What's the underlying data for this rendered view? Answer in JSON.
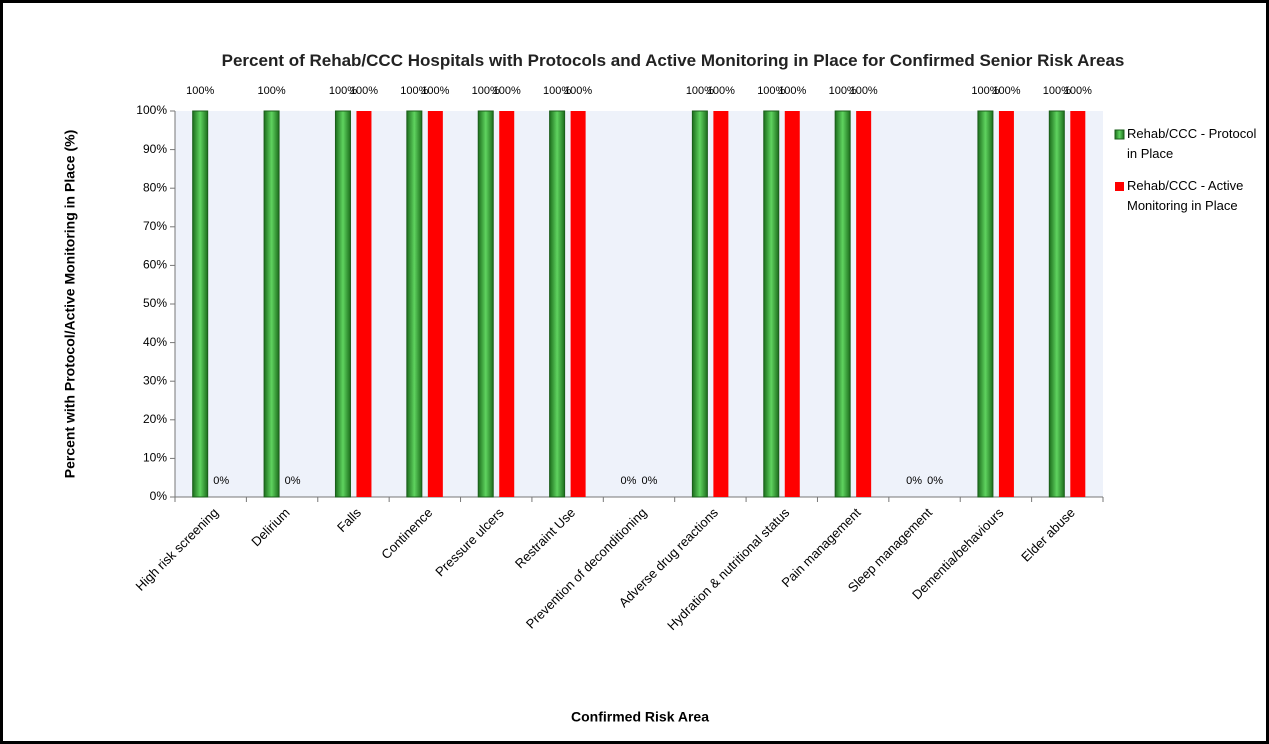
{
  "chart_data": {
    "type": "bar",
    "title": "Percent of Rehab/CCC Hospitals with Protocols and Active Monitoring in Place for Confirmed Senior Risk Areas",
    "x_label": "Confirmed Risk Area",
    "y_label": "Percent with Protocol/Active Monitoring in Place (%)",
    "categories": [
      "High risk screening",
      "Delirium",
      "Falls",
      "Continence",
      "Pressure ulcers",
      "Restraint Use",
      "Prevention of deconditioning",
      "Adverse drug reactions",
      "Hydration & nutritional status",
      "Pain management",
      "Sleep management",
      "Dementia/behaviours",
      "Elder abuse"
    ],
    "series": [
      {
        "name": "Rehab/CCC - Protocol in Place",
        "color": "#2e9b2e",
        "values": [
          100,
          100,
          100,
          100,
          100,
          100,
          0,
          100,
          100,
          100,
          0,
          100,
          100
        ],
        "value_labels": [
          "100%",
          "100%",
          "100%",
          "100%",
          "100%",
          "100%",
          "0%",
          "100%",
          "100%",
          "100%",
          "0%",
          "100%",
          "100%"
        ]
      },
      {
        "name": "Rehab/CCC - Active Monitoring in Place",
        "color": "#ff0000",
        "values": [
          0,
          0,
          100,
          100,
          100,
          100,
          0,
          100,
          100,
          100,
          0,
          100,
          100
        ],
        "value_labels": [
          "0%",
          "0%",
          "100%",
          "100%",
          "100%",
          "100%",
          "0%",
          "100%",
          "100%",
          "100%",
          "0%",
          "100%",
          "100%"
        ]
      }
    ],
    "ylim": [
      0,
      100
    ],
    "yticks": [
      {
        "value": 0,
        "label": "0%"
      },
      {
        "value": 10,
        "label": "10%"
      },
      {
        "value": 20,
        "label": "20%"
      },
      {
        "value": 30,
        "label": "30%"
      },
      {
        "value": 40,
        "label": "40%"
      },
      {
        "value": 50,
        "label": "50%"
      },
      {
        "value": 60,
        "label": "60%"
      },
      {
        "value": 70,
        "label": "70%"
      },
      {
        "value": 80,
        "label": "80%"
      },
      {
        "value": 90,
        "label": "90%"
      },
      {
        "value": 100,
        "label": "100%"
      }
    ],
    "legend": "right"
  }
}
